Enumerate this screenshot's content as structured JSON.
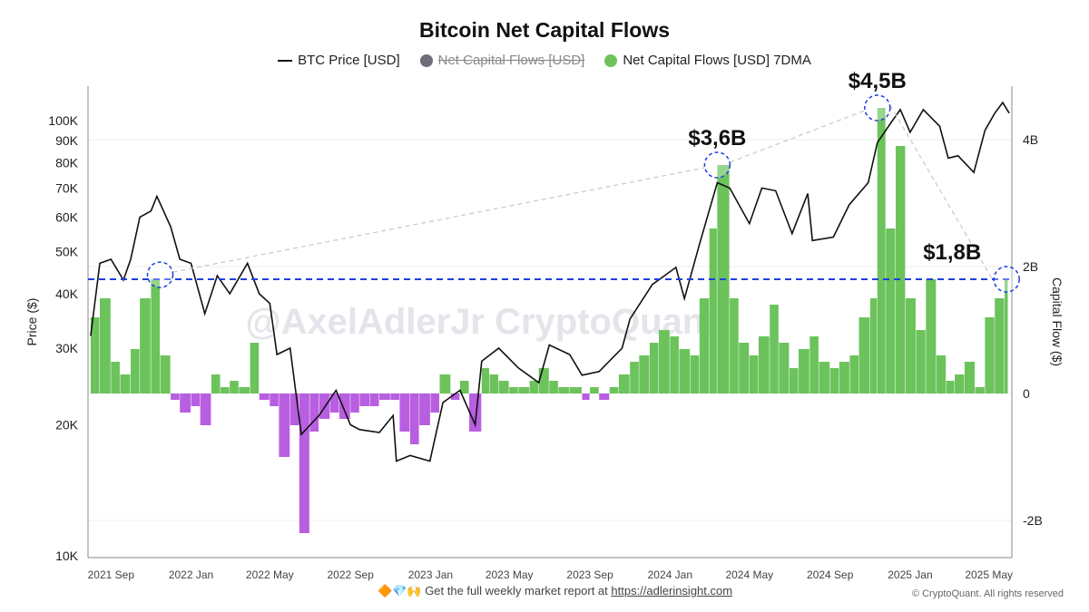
{
  "chart_data": {
    "type": "bar+line",
    "title": "Bitcoin Net Capital Flows",
    "legend": [
      {
        "label": "BTC Price [USD]",
        "color": "#111111",
        "type": "line",
        "active": true
      },
      {
        "label": "Net Capital Flows [USD]",
        "color": "#6e6e7a",
        "type": "dot",
        "active": false
      },
      {
        "label": "Net Capital Flows [USD] 7DMA",
        "color": "#6cc35c",
        "type": "dot",
        "active": true
      }
    ],
    "legend_position": "top",
    "ylabel_left": "Price ($)",
    "ylabel_right": "Capital Flow ($)",
    "y_left_scale": "log",
    "y_left_range": [
      10000,
      140000
    ],
    "y_left_ticks": [
      {
        "v": 10000,
        "l": "10K"
      },
      {
        "v": 20000,
        "l": "20K"
      },
      {
        "v": 30000,
        "l": "30K"
      },
      {
        "v": 40000,
        "l": "40K"
      },
      {
        "v": 50000,
        "l": "50K"
      },
      {
        "v": 60000,
        "l": "60K"
      },
      {
        "v": 70000,
        "l": "70K"
      },
      {
        "v": 80000,
        "l": "80K"
      },
      {
        "v": 90000,
        "l": "90K"
      },
      {
        "v": 100000,
        "l": "100K"
      }
    ],
    "y_right_range": [
      -2.6,
      4.8
    ],
    "y_right_ticks": [
      {
        "v": -2,
        "l": "-2B"
      },
      {
        "v": 0,
        "l": "0"
      },
      {
        "v": 2,
        "l": "2B"
      },
      {
        "v": 4,
        "l": "4B"
      }
    ],
    "x_range": [
      "2021-07-28",
      "2025-06-05"
    ],
    "x_ticks": [
      {
        "d": "2021-09-01",
        "l": "2021 Sep"
      },
      {
        "d": "2022-01-01",
        "l": "2022 Jan"
      },
      {
        "d": "2022-05-01",
        "l": "2022 May"
      },
      {
        "d": "2022-09-01",
        "l": "2022 Sep"
      },
      {
        "d": "2023-01-01",
        "l": "2023 Jan"
      },
      {
        "d": "2023-05-01",
        "l": "2023 May"
      },
      {
        "d": "2023-09-01",
        "l": "2023 Sep"
      },
      {
        "d": "2024-01-01",
        "l": "2024 Jan"
      },
      {
        "d": "2024-05-01",
        "l": "2024 May"
      },
      {
        "d": "2024-09-01",
        "l": "2024 Sep"
      },
      {
        "d": "2025-01-01",
        "l": "2025 Jan"
      },
      {
        "d": "2025-05-01",
        "l": "2025 May"
      }
    ],
    "grid": true,
    "positive_color": "#6cc35c",
    "negative_color": "#b85ee0",
    "price": [
      [
        "2021-08-01",
        32000
      ],
      [
        "2021-08-15",
        47000
      ],
      [
        "2021-09-01",
        48000
      ],
      [
        "2021-09-20",
        43000
      ],
      [
        "2021-10-01",
        48000
      ],
      [
        "2021-10-15",
        60000
      ],
      [
        "2021-11-01",
        62000
      ],
      [
        "2021-11-10",
        67000
      ],
      [
        "2021-12-01",
        57000
      ],
      [
        "2021-12-15",
        48000
      ],
      [
        "2022-01-01",
        47000
      ],
      [
        "2022-01-22",
        36000
      ],
      [
        "2022-02-10",
        44000
      ],
      [
        "2022-03-01",
        40000
      ],
      [
        "2022-03-28",
        47000
      ],
      [
        "2022-04-15",
        40000
      ],
      [
        "2022-05-01",
        38000
      ],
      [
        "2022-05-12",
        29000
      ],
      [
        "2022-06-01",
        30000
      ],
      [
        "2022-06-18",
        19000
      ],
      [
        "2022-07-15",
        21000
      ],
      [
        "2022-08-10",
        24000
      ],
      [
        "2022-09-01",
        20000
      ],
      [
        "2022-09-15",
        19500
      ],
      [
        "2022-10-15",
        19200
      ],
      [
        "2022-11-05",
        21000
      ],
      [
        "2022-11-10",
        16500
      ],
      [
        "2022-12-01",
        17000
      ],
      [
        "2022-12-31",
        16500
      ],
      [
        "2023-01-20",
        22500
      ],
      [
        "2023-02-15",
        24000
      ],
      [
        "2023-03-10",
        20000
      ],
      [
        "2023-03-20",
        28000
      ],
      [
        "2023-04-15",
        30000
      ],
      [
        "2023-05-15",
        27000
      ],
      [
        "2023-06-15",
        25000
      ],
      [
        "2023-07-01",
        30500
      ],
      [
        "2023-08-01",
        29000
      ],
      [
        "2023-08-20",
        26000
      ],
      [
        "2023-09-15",
        26500
      ],
      [
        "2023-10-20",
        30000
      ],
      [
        "2023-11-01",
        35000
      ],
      [
        "2023-12-05",
        42000
      ],
      [
        "2024-01-10",
        46000
      ],
      [
        "2024-01-23",
        39000
      ],
      [
        "2024-02-15",
        52000
      ],
      [
        "2024-03-13",
        72000
      ],
      [
        "2024-04-01",
        70000
      ],
      [
        "2024-05-01",
        58000
      ],
      [
        "2024-05-20",
        70000
      ],
      [
        "2024-06-10",
        69000
      ],
      [
        "2024-07-05",
        55000
      ],
      [
        "2024-07-29",
        68000
      ],
      [
        "2024-08-05",
        53000
      ],
      [
        "2024-09-06",
        54000
      ],
      [
        "2024-09-30",
        64000
      ],
      [
        "2024-10-29",
        72000
      ],
      [
        "2024-11-12",
        89000
      ],
      [
        "2024-12-05",
        100000
      ],
      [
        "2024-12-17",
        106000
      ],
      [
        "2025-01-01",
        94000
      ],
      [
        "2025-01-21",
        106000
      ],
      [
        "2025-02-15",
        97000
      ],
      [
        "2025-02-28",
        82000
      ],
      [
        "2025-03-15",
        83000
      ],
      [
        "2025-04-08",
        76000
      ],
      [
        "2025-04-25",
        95000
      ],
      [
        "2025-05-10",
        104000
      ],
      [
        "2025-05-22",
        110000
      ],
      [
        "2025-06-01",
        104000
      ]
    ],
    "flows_7dma_billions": [
      [
        "2021-08-01",
        1.2
      ],
      [
        "2021-08-15",
        1.5
      ],
      [
        "2021-09-01",
        0.5
      ],
      [
        "2021-09-15",
        0.3
      ],
      [
        "2021-10-01",
        0.7
      ],
      [
        "2021-10-15",
        1.5
      ],
      [
        "2021-11-01",
        1.8
      ],
      [
        "2021-11-15",
        0.6
      ],
      [
        "2021-12-01",
        -0.1
      ],
      [
        "2021-12-15",
        -0.3
      ],
      [
        "2022-01-01",
        -0.2
      ],
      [
        "2022-01-15",
        -0.5
      ],
      [
        "2022-02-01",
        0.3
      ],
      [
        "2022-02-15",
        0.1
      ],
      [
        "2022-03-01",
        0.2
      ],
      [
        "2022-03-15",
        0.1
      ],
      [
        "2022-04-01",
        0.8
      ],
      [
        "2022-04-15",
        -0.1
      ],
      [
        "2022-05-01",
        -0.2
      ],
      [
        "2022-05-15",
        -1.0
      ],
      [
        "2022-06-01",
        -0.5
      ],
      [
        "2022-06-15",
        -2.2
      ],
      [
        "2022-07-01",
        -0.6
      ],
      [
        "2022-07-15",
        -0.4
      ],
      [
        "2022-08-01",
        -0.3
      ],
      [
        "2022-08-15",
        -0.4
      ],
      [
        "2022-09-01",
        -0.3
      ],
      [
        "2022-09-15",
        -0.2
      ],
      [
        "2022-10-01",
        -0.2
      ],
      [
        "2022-10-15",
        -0.1
      ],
      [
        "2022-11-01",
        -0.1
      ],
      [
        "2022-11-15",
        -0.6
      ],
      [
        "2022-12-01",
        -0.8
      ],
      [
        "2022-12-15",
        -0.5
      ],
      [
        "2023-01-01",
        -0.3
      ],
      [
        "2023-01-15",
        0.3
      ],
      [
        "2023-02-01",
        -0.1
      ],
      [
        "2023-02-15",
        0.2
      ],
      [
        "2023-03-01",
        -0.6
      ],
      [
        "2023-03-20",
        0.4
      ],
      [
        "2023-04-01",
        0.3
      ],
      [
        "2023-04-15",
        0.2
      ],
      [
        "2023-05-01",
        0.1
      ],
      [
        "2023-05-15",
        0.1
      ],
      [
        "2023-06-01",
        0.2
      ],
      [
        "2023-06-15",
        0.4
      ],
      [
        "2023-07-01",
        0.2
      ],
      [
        "2023-07-15",
        0.1
      ],
      [
        "2023-08-01",
        0.1
      ],
      [
        "2023-08-20",
        -0.1
      ],
      [
        "2023-09-01",
        0.1
      ],
      [
        "2023-09-15",
        -0.1
      ],
      [
        "2023-10-01",
        0.1
      ],
      [
        "2023-10-15",
        0.3
      ],
      [
        "2023-11-01",
        0.5
      ],
      [
        "2023-11-15",
        0.6
      ],
      [
        "2023-12-01",
        0.8
      ],
      [
        "2023-12-15",
        1.0
      ],
      [
        "2024-01-01",
        0.9
      ],
      [
        "2024-01-15",
        0.7
      ],
      [
        "2024-02-01",
        0.6
      ],
      [
        "2024-02-15",
        1.5
      ],
      [
        "2024-03-01",
        2.6
      ],
      [
        "2024-03-13",
        3.6
      ],
      [
        "2024-04-01",
        1.5
      ],
      [
        "2024-04-15",
        0.8
      ],
      [
        "2024-05-01",
        0.6
      ],
      [
        "2024-05-15",
        0.9
      ],
      [
        "2024-06-01",
        1.4
      ],
      [
        "2024-06-15",
        0.8
      ],
      [
        "2024-07-01",
        0.4
      ],
      [
        "2024-07-15",
        0.7
      ],
      [
        "2024-08-01",
        0.9
      ],
      [
        "2024-08-15",
        0.5
      ],
      [
        "2024-09-01",
        0.4
      ],
      [
        "2024-09-15",
        0.5
      ],
      [
        "2024-10-01",
        0.6
      ],
      [
        "2024-10-15",
        1.2
      ],
      [
        "2024-11-01",
        1.5
      ],
      [
        "2024-11-12",
        4.5
      ],
      [
        "2024-11-25",
        2.6
      ],
      [
        "2024-12-10",
        3.9
      ],
      [
        "2024-12-25",
        1.5
      ],
      [
        "2025-01-10",
        1.0
      ],
      [
        "2025-01-25",
        1.8
      ],
      [
        "2025-02-10",
        0.6
      ],
      [
        "2025-02-25",
        0.2
      ],
      [
        "2025-03-10",
        0.3
      ],
      [
        "2025-03-25",
        0.5
      ],
      [
        "2025-04-10",
        0.1
      ],
      [
        "2025-04-25",
        1.2
      ],
      [
        "2025-05-10",
        1.5
      ],
      [
        "2025-05-25",
        1.8
      ]
    ],
    "reference_line": {
      "value_billions": 1.8,
      "color": "#1f3fe0",
      "style": "dashed"
    },
    "annotations": [
      {
        "date": "2021-11-15",
        "value": 1.87,
        "label": ""
      },
      {
        "date": "2024-03-13",
        "value": 3.6,
        "label": "$3,6B"
      },
      {
        "date": "2024-11-12",
        "value": 4.5,
        "label": "$4,5B"
      },
      {
        "date": "2025-05-28",
        "value": 1.8,
        "label": "$1,8B"
      }
    ]
  },
  "watermark": "@AxelAdlerJr  CryptoQuant",
  "footer": {
    "emoji": "🔶💎🙌",
    "text": "Get the full weekly market report at ",
    "link": "https://adlerinsight.com",
    "copyright": "© CryptoQuant. All rights reserved"
  }
}
